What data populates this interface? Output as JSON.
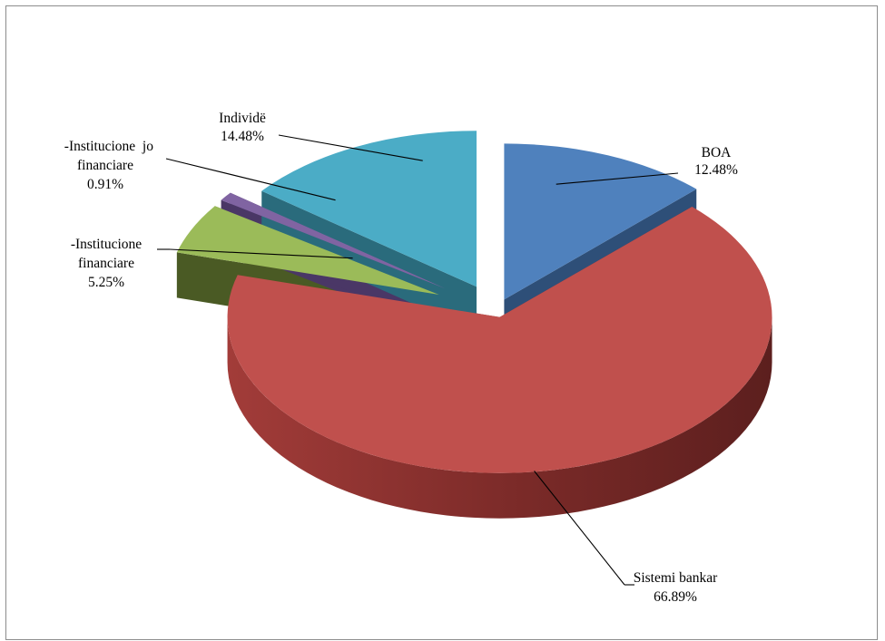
{
  "chart_data": {
    "type": "pie",
    "title": "",
    "slices": [
      {
        "key": "boa",
        "label_lines": [
          "BOA"
        ],
        "value": 12.48,
        "value_label": "12.48%",
        "color": "#4f81bd"
      },
      {
        "key": "sistemi-bankar",
        "label_lines": [
          "Sistemi bankar"
        ],
        "value": 66.89,
        "value_label": "66.89%",
        "color": "#c0504d"
      },
      {
        "key": "institucione-financiare",
        "label_lines": [
          "-Institucione",
          "financiare"
        ],
        "value": 5.25,
        "value_label": "5.25%",
        "color": "#9bbb59"
      },
      {
        "key": "institucione-jo-financiare",
        "label_lines": [
          "-Institucione  jo",
          "financiare"
        ],
        "value": 0.91,
        "value_label": "0.91%",
        "color": "#8064a2"
      },
      {
        "key": "individe",
        "label_lines": [
          "Individë"
        ],
        "value": 14.48,
        "value_label": "14.48%",
        "color": "#4bacc6"
      }
    ],
    "legend": "none",
    "three_d": true
  }
}
